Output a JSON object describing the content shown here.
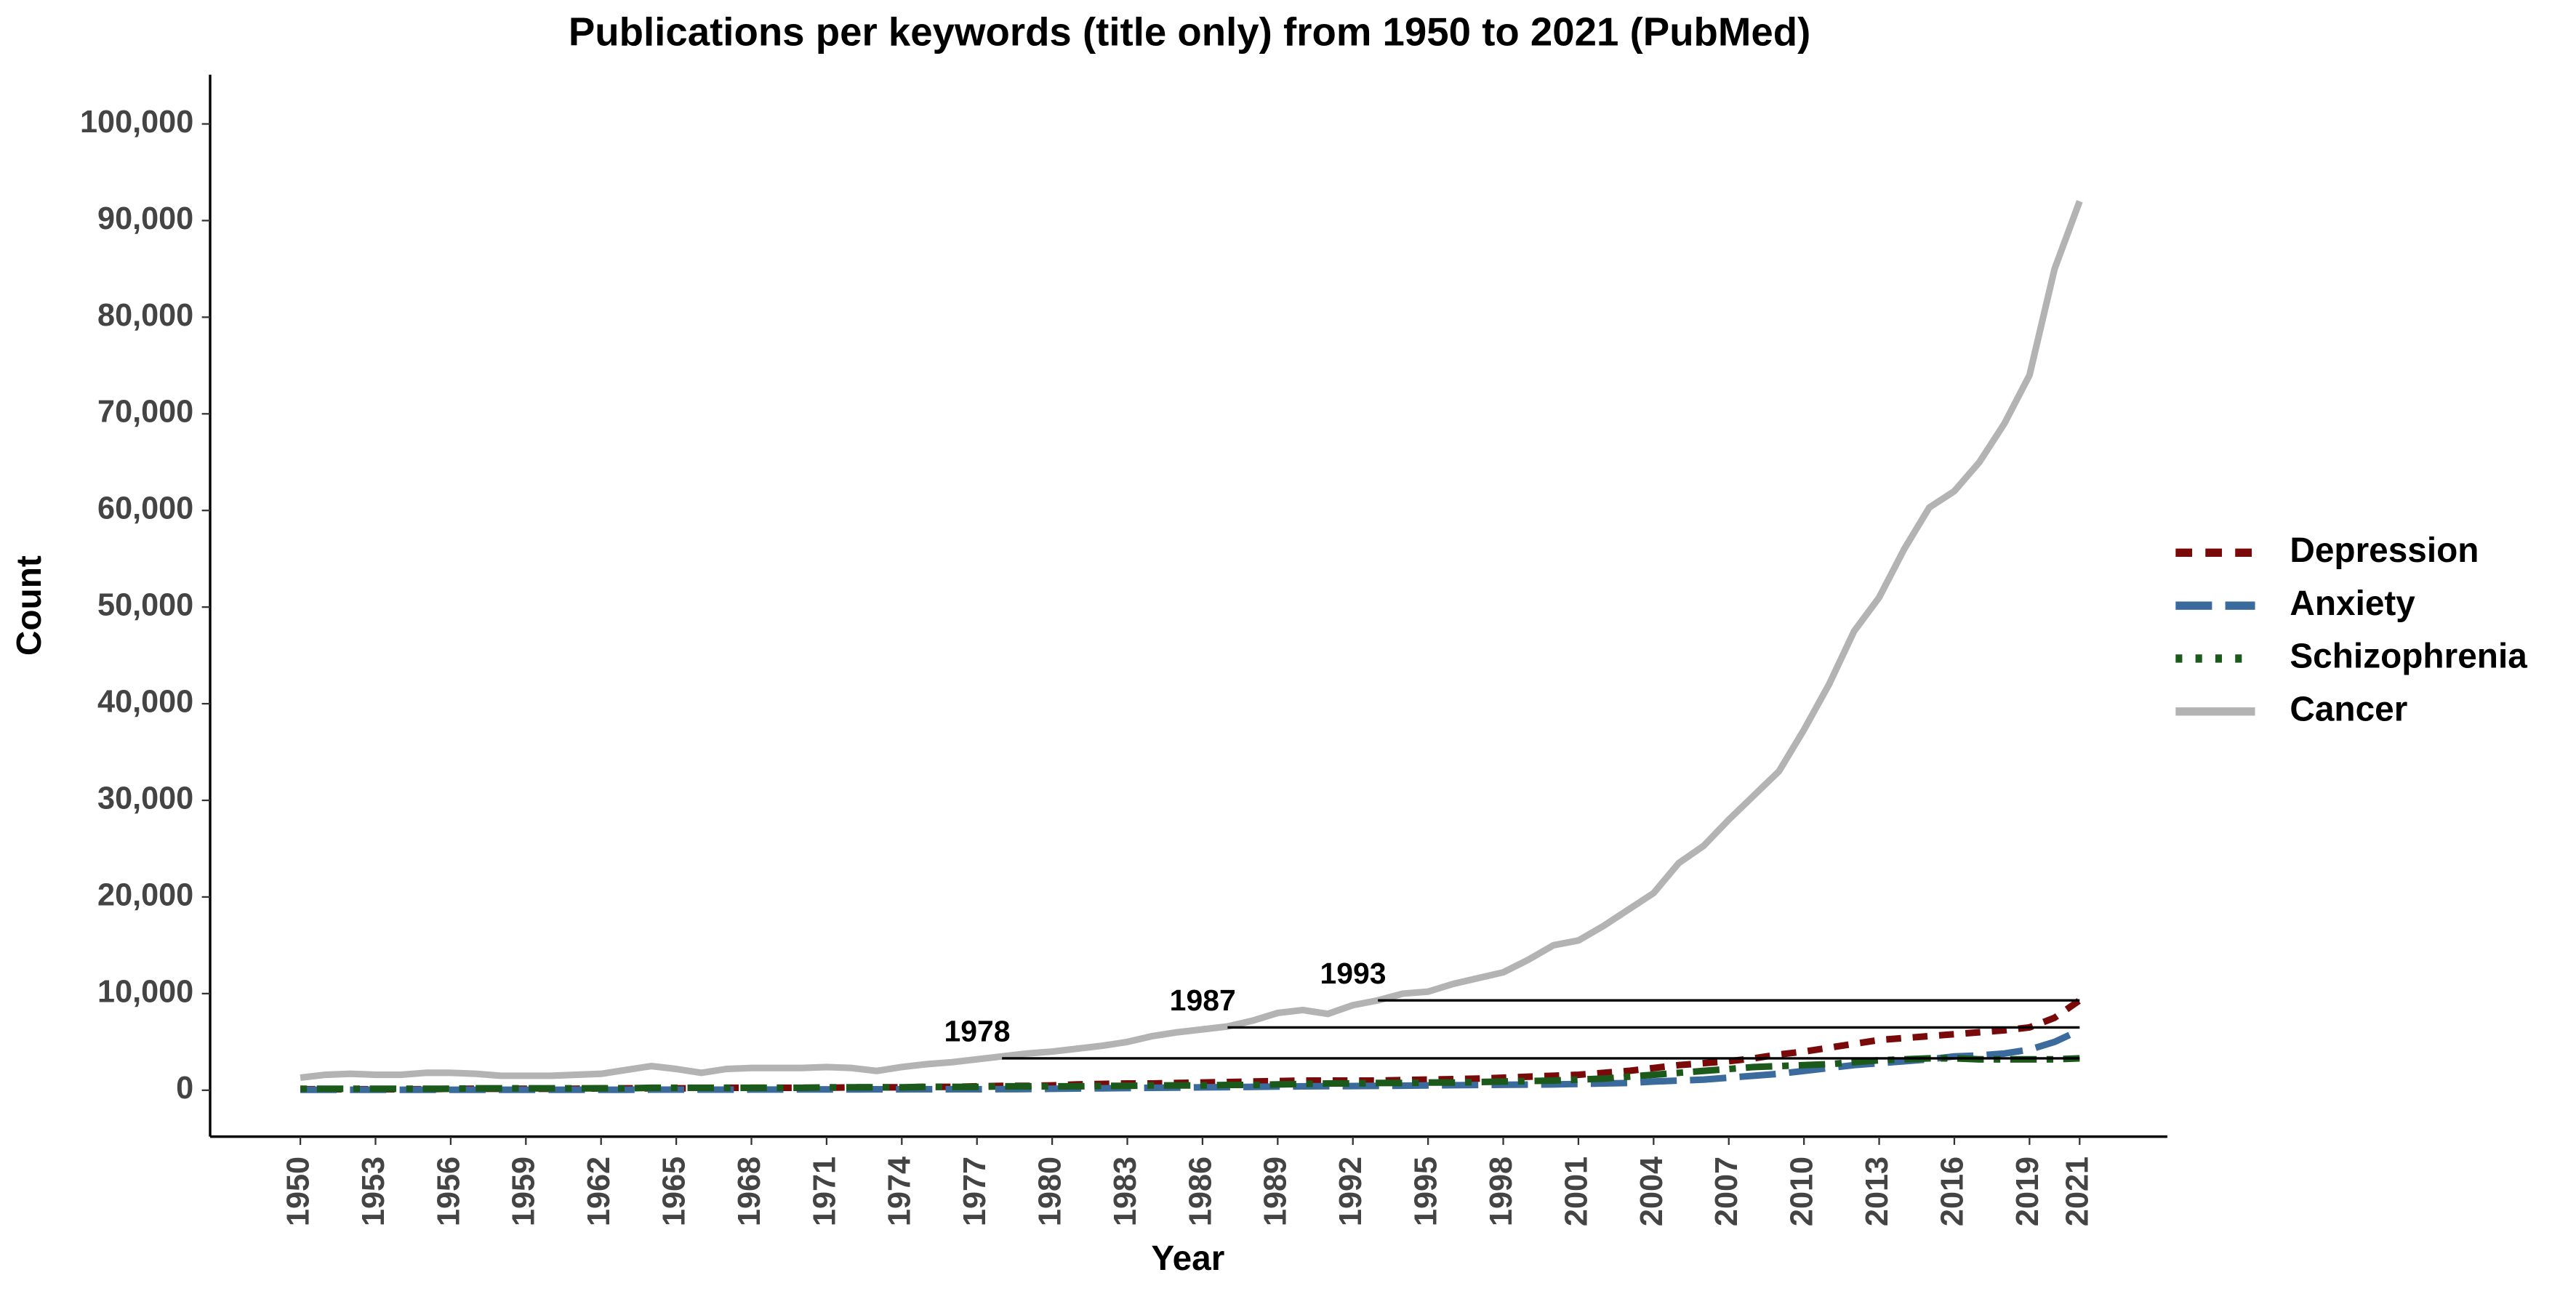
{
  "chart_data": {
    "type": "line",
    "title": "Publications per keywords (title only) from 1950 to 2021 (PubMed)",
    "xlabel": "Year",
    "ylabel": "Count",
    "x": [
      1950,
      1951,
      1952,
      1953,
      1954,
      1955,
      1956,
      1957,
      1958,
      1959,
      1960,
      1961,
      1962,
      1963,
      1964,
      1965,
      1966,
      1967,
      1968,
      1969,
      1970,
      1971,
      1972,
      1973,
      1974,
      1975,
      1976,
      1977,
      1978,
      1979,
      1980,
      1981,
      1982,
      1983,
      1984,
      1985,
      1986,
      1987,
      1988,
      1989,
      1990,
      1991,
      1992,
      1993,
      1994,
      1995,
      1996,
      1997,
      1998,
      1999,
      2000,
      2001,
      2002,
      2003,
      2004,
      2005,
      2006,
      2007,
      2008,
      2009,
      2010,
      2011,
      2012,
      2013,
      2014,
      2015,
      2016,
      2017,
      2018,
      2019,
      2020,
      2021
    ],
    "series": [
      {
        "name": "Depression",
        "color": "#7a0a0a",
        "linestyle": "dashed",
        "values": [
          100,
          100,
          100,
          100,
          100,
          100,
          150,
          150,
          150,
          150,
          150,
          150,
          200,
          200,
          200,
          200,
          200,
          250,
          250,
          250,
          250,
          250,
          300,
          300,
          300,
          350,
          350,
          400,
          450,
          450,
          500,
          600,
          650,
          700,
          700,
          750,
          800,
          850,
          900,
          950,
          1000,
          1000,
          1000,
          1000,
          1050,
          1100,
          1150,
          1200,
          1300,
          1400,
          1500,
          1600,
          1800,
          2000,
          2300,
          2600,
          2800,
          3000,
          3300,
          3700,
          4000,
          4400,
          4800,
          5200,
          5400,
          5600,
          5800,
          6000,
          6200,
          6500,
          7500,
          9300
        ]
      },
      {
        "name": "Anxiety",
        "color": "#3b6b9c",
        "linestyle": "longdash",
        "values": [
          50,
          50,
          50,
          50,
          50,
          50,
          50,
          50,
          50,
          50,
          50,
          50,
          50,
          50,
          60,
          60,
          60,
          60,
          70,
          70,
          80,
          80,
          80,
          90,
          90,
          100,
          100,
          100,
          110,
          120,
          150,
          180,
          200,
          220,
          250,
          270,
          300,
          320,
          350,
          380,
          400,
          420,
          430,
          450,
          470,
          500,
          520,
          540,
          560,
          580,
          600,
          650,
          700,
          750,
          900,
          1000,
          1100,
          1300,
          1500,
          1700,
          2000,
          2300,
          2600,
          2800,
          3000,
          3200,
          3500,
          3600,
          3800,
          4200,
          5000,
          6200
        ]
      },
      {
        "name": "Schizophrenia",
        "color": "#1b5a1b",
        "linestyle": "dotdash",
        "values": [
          150,
          150,
          150,
          150,
          150,
          150,
          150,
          200,
          200,
          200,
          200,
          200,
          200,
          200,
          250,
          250,
          250,
          250,
          250,
          250,
          250,
          300,
          300,
          300,
          300,
          350,
          350,
          350,
          400,
          400,
          400,
          400,
          450,
          450,
          500,
          500,
          500,
          550,
          550,
          600,
          650,
          700,
          700,
          750,
          750,
          800,
          800,
          850,
          900,
          950,
          1000,
          1100,
          1200,
          1400,
          1600,
          1800,
          2000,
          2200,
          2400,
          2500,
          2600,
          2700,
          2900,
          3100,
          3200,
          3300,
          3300,
          3200,
          3200,
          3200,
          3200,
          3300
        ]
      },
      {
        "name": "Cancer",
        "color": "#b3b3b3",
        "linestyle": "solid",
        "values": [
          1300,
          1600,
          1700,
          1600,
          1600,
          1800,
          1800,
          1700,
          1500,
          1500,
          1500,
          1600,
          1700,
          2100,
          2500,
          2200,
          1800,
          2200,
          2300,
          2300,
          2300,
          2400,
          2300,
          2000,
          2400,
          2700,
          2900,
          3200,
          3500,
          3800,
          4000,
          4300,
          4600,
          5000,
          5600,
          6000,
          6300,
          6600,
          7200,
          8000,
          8300,
          7900,
          8800,
          9300,
          10000,
          10200,
          11000,
          11600,
          12200,
          13500,
          15000,
          15500,
          17000,
          18700,
          20400,
          23500,
          25300,
          28000,
          30500,
          33000,
          37300,
          42000,
          47500,
          51000,
          56000,
          60300,
          62000,
          65000,
          69000,
          74000,
          85000,
          92000
        ]
      }
    ],
    "annotations": [
      {
        "text": "1978",
        "x": 1978,
        "y": 3300
      },
      {
        "text": "1987",
        "x": 1987,
        "y": 6500
      },
      {
        "text": "1993",
        "x": 1993,
        "y": 9300
      }
    ],
    "xlim": [
      1946.4,
      2024.5
    ],
    "xticks": [
      1950,
      1953,
      1956,
      1959,
      1962,
      1965,
      1968,
      1971,
      1974,
      1977,
      1980,
      1983,
      1986,
      1989,
      1992,
      1995,
      1998,
      2001,
      2004,
      2007,
      2010,
      2013,
      2016,
      2019,
      2021
    ],
    "ylim": [
      -4800,
      105100
    ],
    "yticks": [
      0,
      {
        "value": 10000,
        "label": "10,000"
      },
      {
        "value": 20000,
        "label": "20,000"
      },
      {
        "value": 30000,
        "label": "30,000"
      },
      {
        "value": 40000,
        "label": "40,000"
      },
      {
        "value": 50000,
        "label": "50,000"
      },
      {
        "value": 60000,
        "label": "60,000"
      },
      {
        "value": 70000,
        "label": "70,000"
      },
      {
        "value": 80000,
        "label": "80,000"
      },
      {
        "value": 90000,
        "label": "90,000"
      },
      {
        "value": 100000,
        "label": "100,000"
      }
    ],
    "grid": false,
    "legend": "right"
  }
}
